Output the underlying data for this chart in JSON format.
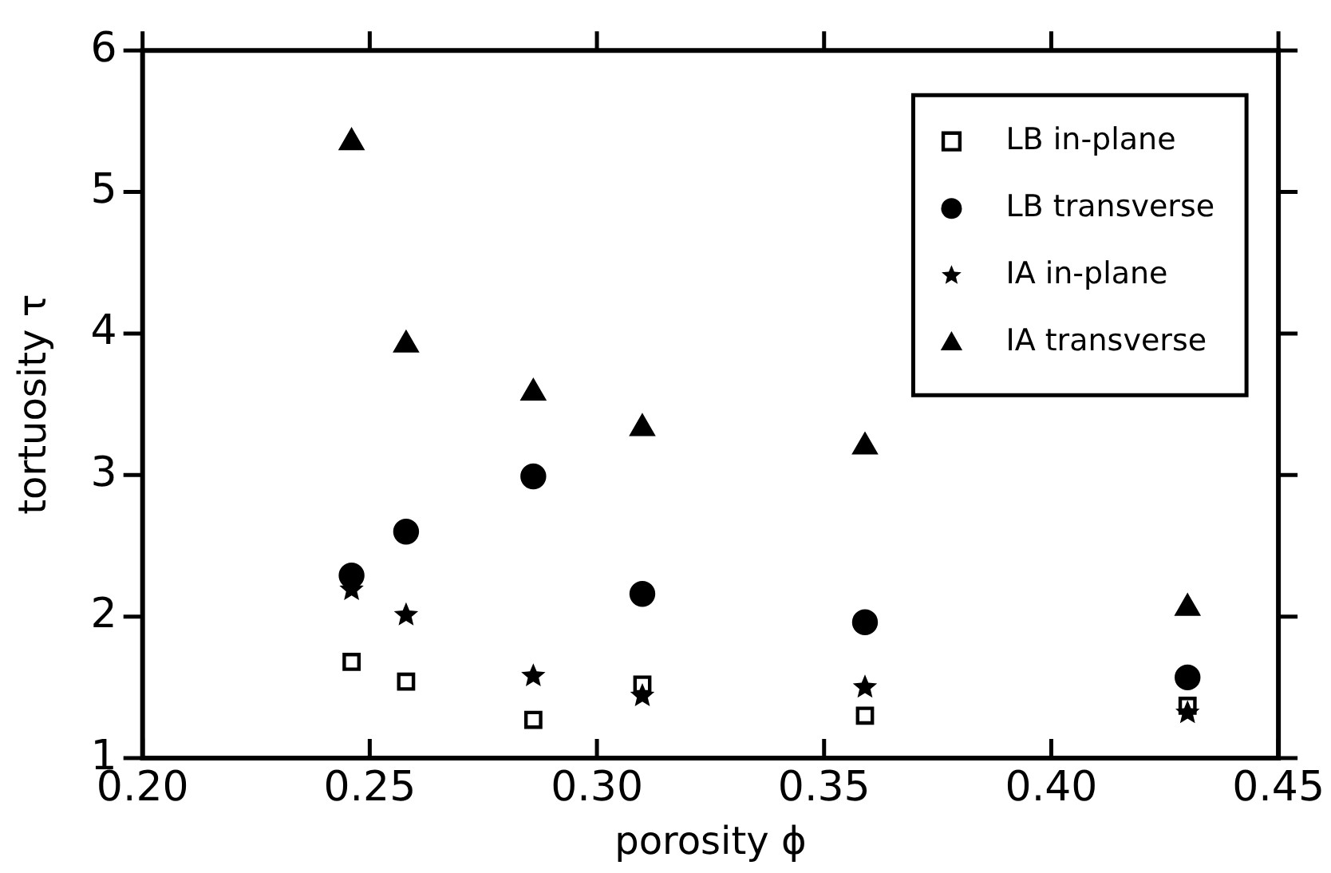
{
  "chart_data": {
    "type": "scatter",
    "xlabel": "porosity ϕ",
    "ylabel": "tortuosity τ",
    "x": [
      0.246,
      0.258,
      0.286,
      0.31,
      0.359,
      0.43
    ],
    "series": [
      {
        "name": "LB in-plane",
        "color": "#000000",
        "marker": "square",
        "values": [
          1.68,
          1.54,
          1.27,
          1.52,
          1.3,
          1.37
        ]
      },
      {
        "name": "LB transverse",
        "color": "#000000",
        "marker": "circle",
        "values": [
          2.29,
          2.6,
          2.99,
          2.16,
          1.96,
          1.57
        ]
      },
      {
        "name": "IA in-plane",
        "color": "#000000",
        "marker": "star",
        "values": [
          2.19,
          2.01,
          1.58,
          1.44,
          1.5,
          1.32
        ]
      },
      {
        "name": "IA transverse",
        "color": "#000000",
        "marker": "triangle",
        "values": [
          5.35,
          3.92,
          3.58,
          3.33,
          3.2,
          2.06
        ]
      }
    ],
    "xlim": [
      0.2,
      0.45
    ],
    "xticks": [
      {
        "value": 0.2,
        "label": "0.20"
      },
      {
        "value": 0.25,
        "label": "0.25"
      },
      {
        "value": 0.3,
        "label": "0.30"
      },
      {
        "value": 0.35,
        "label": "0.35"
      },
      {
        "value": 0.4,
        "label": "0.40"
      },
      {
        "value": 0.45,
        "label": "0.45"
      }
    ],
    "ylim": [
      1,
      6
    ],
    "yticks": [
      1,
      2,
      3,
      4,
      5,
      6
    ],
    "grid": false,
    "legend": "top right"
  }
}
